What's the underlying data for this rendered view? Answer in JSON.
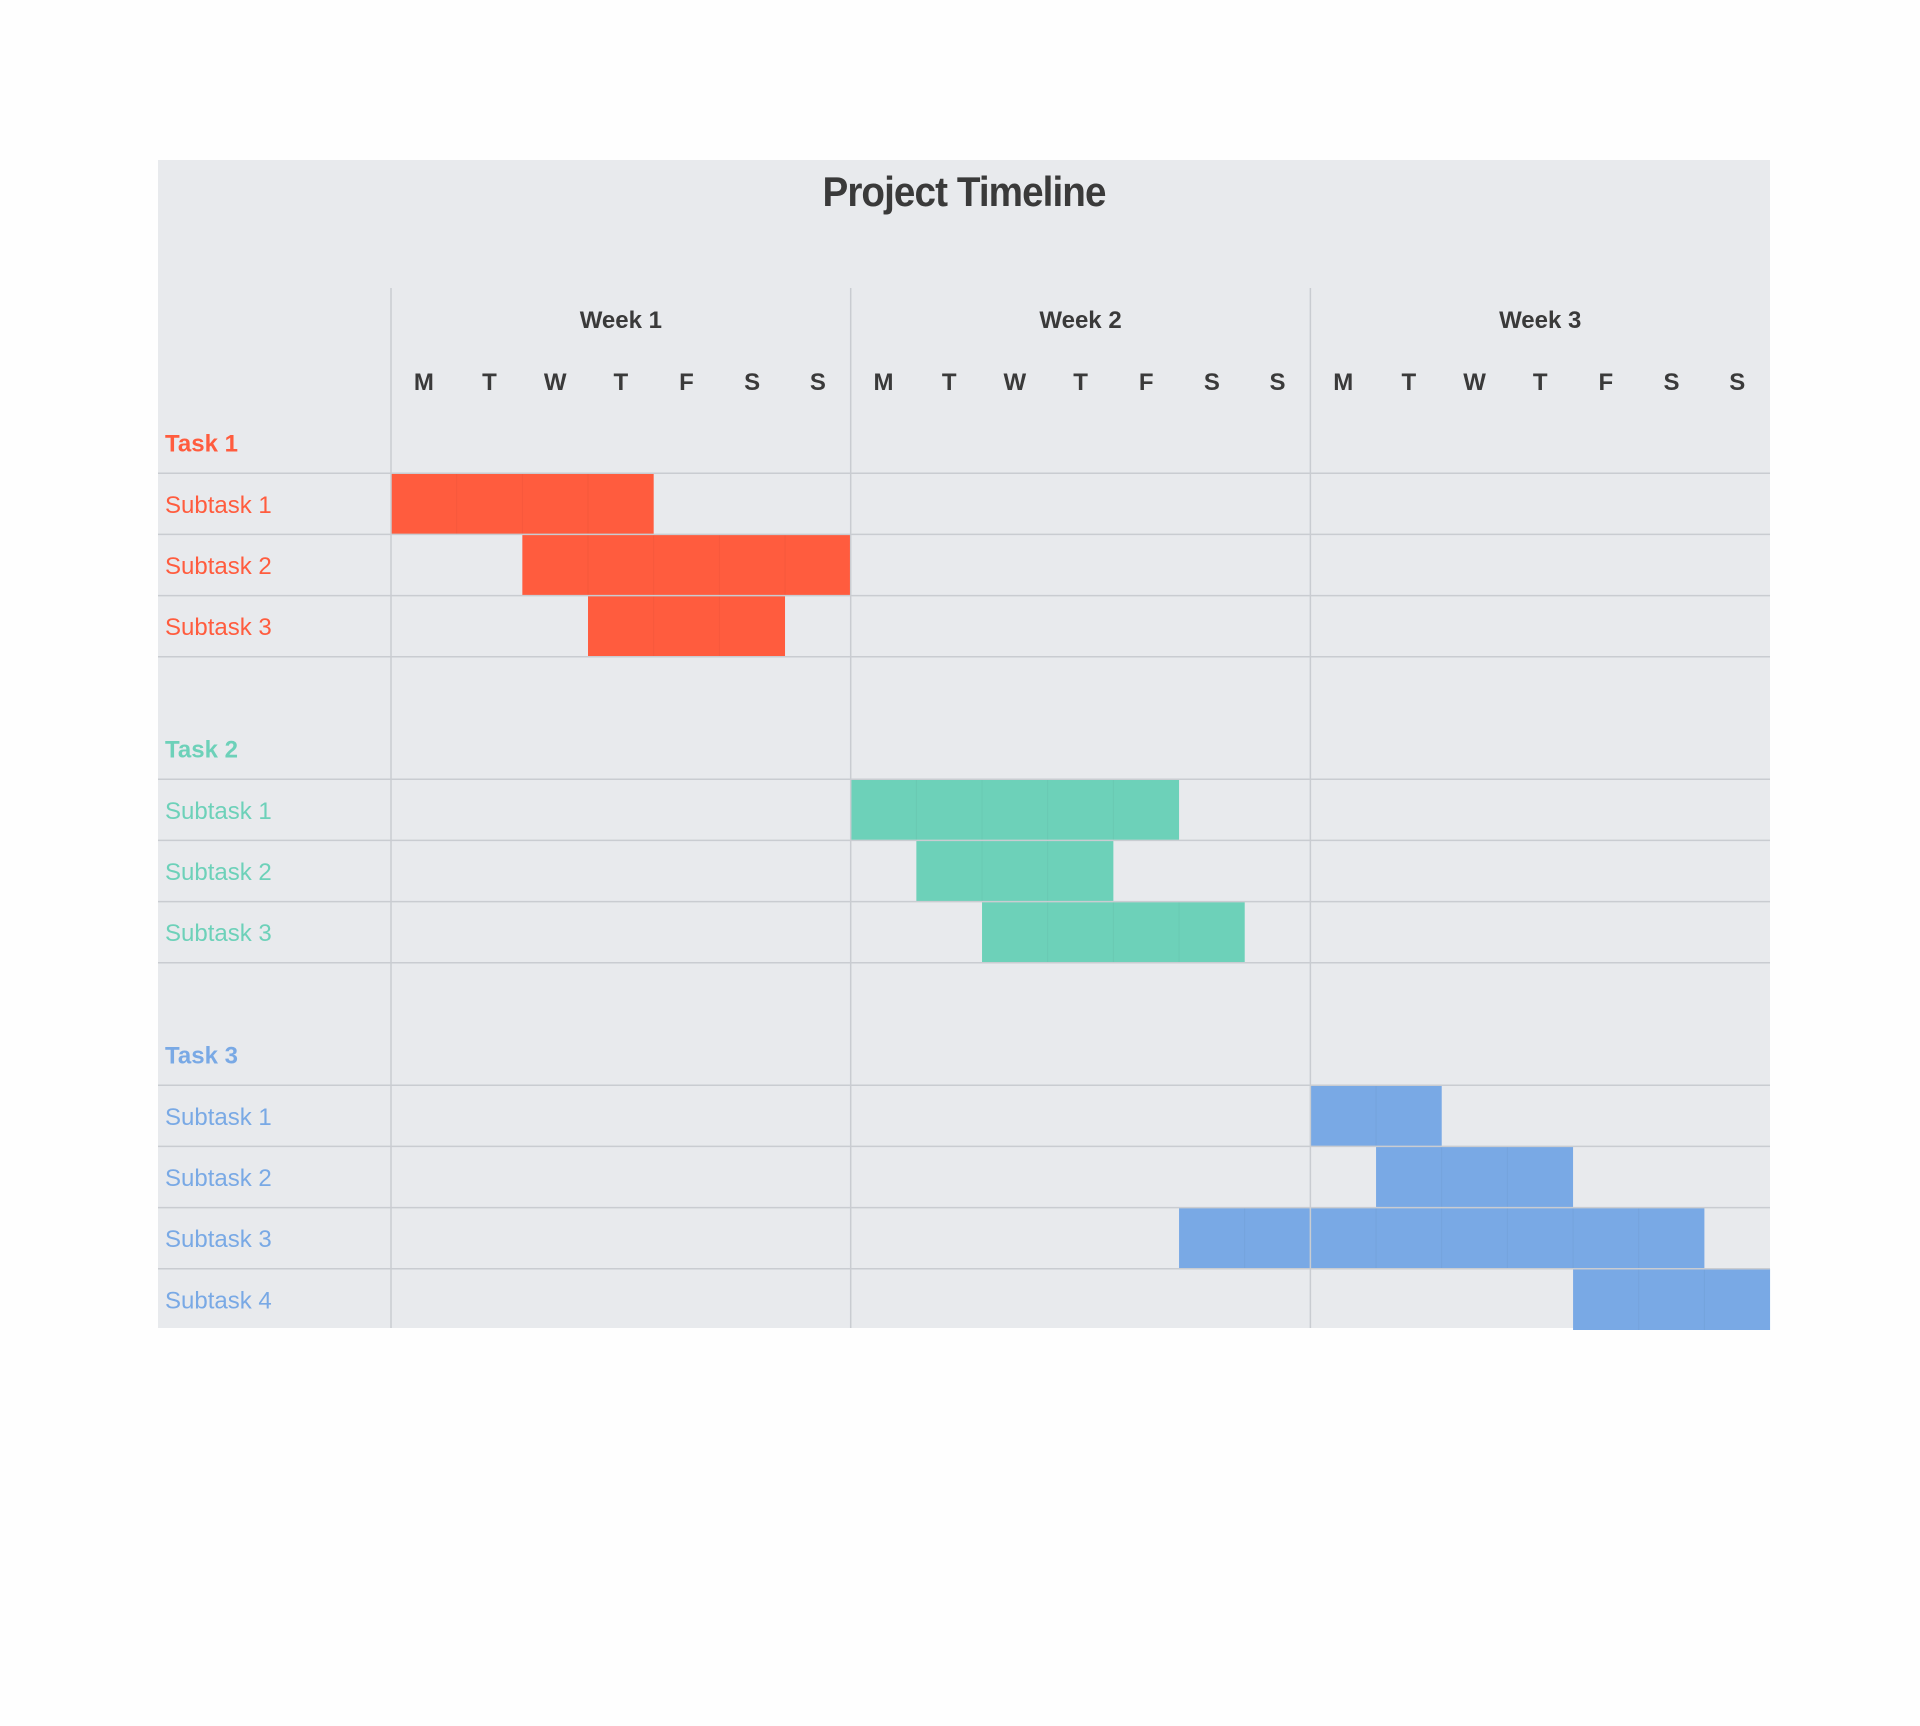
{
  "chart_data": {
    "type": "gantt",
    "title": "Project Timeline",
    "weeks": [
      "Week 1",
      "Week 2",
      "Week 3"
    ],
    "days": [
      "M",
      "T",
      "W",
      "T",
      "F",
      "S",
      "S"
    ],
    "tasks": [
      {
        "name": "Task 1",
        "color": "#ff5c3e",
        "subtasks": [
          {
            "name": "Subtask 1",
            "start_day": 1,
            "end_day": 4
          },
          {
            "name": "Subtask 2",
            "start_day": 3,
            "end_day": 7
          },
          {
            "name": "Subtask 3",
            "start_day": 4,
            "end_day": 6
          }
        ]
      },
      {
        "name": "Task 2",
        "color": "#6dd1b9",
        "subtasks": [
          {
            "name": "Subtask 1",
            "start_day": 8,
            "end_day": 12
          },
          {
            "name": "Subtask 2",
            "start_day": 9,
            "end_day": 11
          },
          {
            "name": "Subtask 3",
            "start_day": 10,
            "end_day": 13
          }
        ]
      },
      {
        "name": "Task 3",
        "color": "#79a9e5",
        "subtasks": [
          {
            "name": "Subtask 1",
            "start_day": 15,
            "end_day": 16
          },
          {
            "name": "Subtask 2",
            "start_day": 16,
            "end_day": 18
          },
          {
            "name": "Subtask 3",
            "start_day": 13,
            "end_day": 20
          },
          {
            "name": "Subtask 4",
            "start_day": 19,
            "end_day": 21
          }
        ]
      }
    ]
  }
}
